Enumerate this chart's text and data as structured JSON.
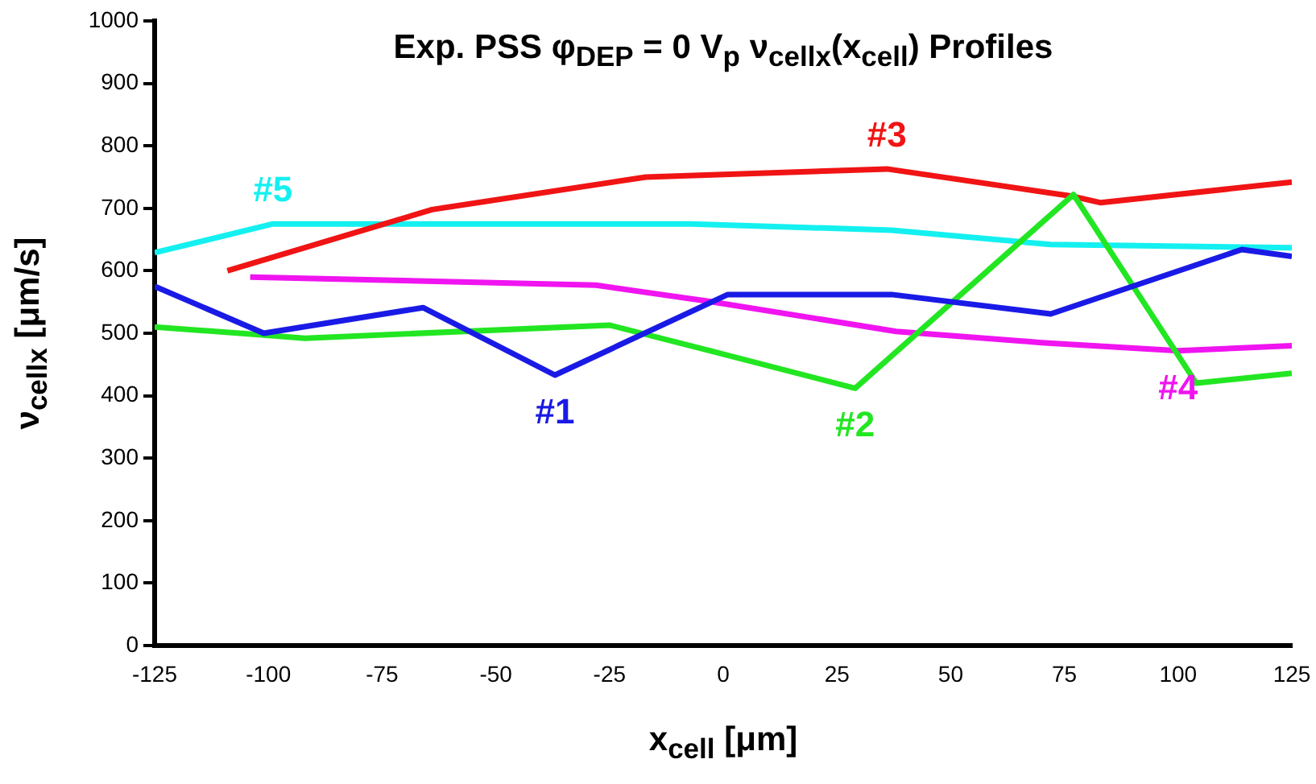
{
  "chart_data": {
    "type": "line",
    "title": "Exp. PSS φ$_{DEP}$ = 0 V$_{p}$ ν$_{cellx}$(x$_{cell}$) Profiles",
    "xlabel": "x$_{cell}$ [μm]",
    "ylabel": "ν$_{cellx}$ [μm/s]",
    "xlim": [
      -125,
      125
    ],
    "xticks": [
      -125,
      -100,
      -75,
      -50,
      -25,
      0,
      25,
      50,
      75,
      100,
      125
    ],
    "ylim": [
      0,
      1000
    ],
    "yticks": [
      0,
      100,
      200,
      300,
      400,
      500,
      600,
      700,
      800,
      900,
      1000
    ],
    "grid": false,
    "legend": false,
    "marker": "none",
    "line_style": "solid",
    "series": [
      {
        "name": "#1",
        "color": "#1a1ae6",
        "x": [
          -125,
          -101,
          -66,
          -37,
          1,
          37,
          72,
          114,
          125
        ],
        "values": [
          575,
          500,
          541,
          433,
          562,
          562,
          531,
          634,
          623
        ]
      },
      {
        "name": "#2",
        "color": "#22e622",
        "x": [
          -125,
          -101,
          -92,
          -25,
          -3,
          29,
          77,
          104,
          125
        ],
        "values": [
          510,
          497,
          492,
          513,
          472,
          412,
          722,
          420,
          436
        ]
      },
      {
        "name": "#3",
        "color": "#f01414",
        "x": [
          -109,
          -64,
          -17,
          4,
          36,
          77,
          83,
          125
        ],
        "values": [
          600,
          698,
          750,
          755,
          763,
          719,
          709,
          742
        ]
      },
      {
        "name": "#4",
        "color": "#f014f0",
        "x": [
          -104,
          -28,
          -3,
          38,
          70,
          100,
          125
        ],
        "values": [
          590,
          577,
          551,
          503,
          485,
          472,
          480
        ]
      },
      {
        "name": "#5",
        "color": "#14f0f0",
        "x": [
          -125,
          -99,
          -7,
          37,
          72,
          125
        ],
        "values": [
          629,
          675,
          675,
          665,
          642,
          637
        ]
      }
    ]
  }
}
